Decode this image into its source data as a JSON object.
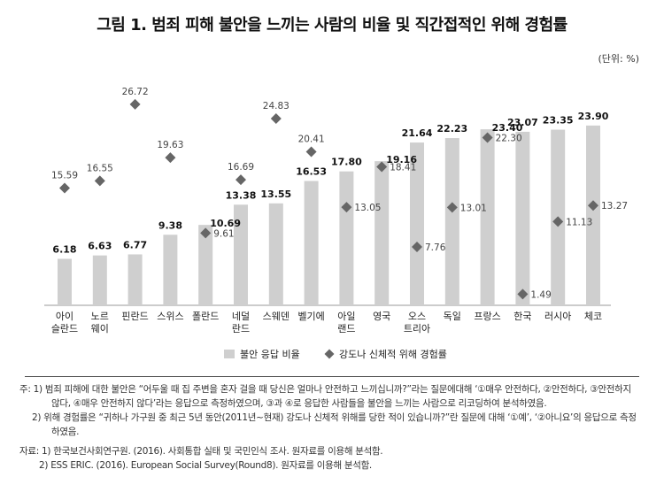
{
  "title": "그림 1. 범죄 피해 불안을 느끼는 사람의 비율 및 직간접적인 위해 경험률",
  "unit": "(단위: %)",
  "chart_data": {
    "type": "bar+scatter",
    "categories": [
      [
        "아이",
        "슬란드"
      ],
      [
        "노르",
        "웨이"
      ],
      [
        "핀란드"
      ],
      [
        "스위스"
      ],
      [
        "폴란드"
      ],
      [
        "네덜",
        "란드"
      ],
      [
        "스웨덴"
      ],
      [
        "벨기에"
      ],
      [
        "아일",
        "랜드"
      ],
      [
        "영국"
      ],
      [
        "오스",
        "트리아"
      ],
      [
        "독일"
      ],
      [
        "프랑스"
      ],
      [
        "한국"
      ],
      [
        "러시아"
      ],
      [
        "체코"
      ]
    ],
    "series": [
      {
        "name": "불안 응답 비율",
        "type": "bar",
        "color": "#cfcfcf",
        "values": [
          6.18,
          6.63,
          6.77,
          9.38,
          10.69,
          13.38,
          13.55,
          16.53,
          17.8,
          19.16,
          21.64,
          22.23,
          23.4,
          23.07,
          23.35,
          23.9
        ],
        "value_labels": [
          "6.18",
          "6.63",
          "6.77",
          "9.38",
          "10.69",
          "13.38",
          "13.55",
          "16.53",
          "17.80",
          "19.16",
          "21.64",
          "22.23",
          "23.40",
          "23.07",
          "23.35",
          "23.90"
        ]
      },
      {
        "name": "강도나 신체적 위해 경험률",
        "type": "scatter",
        "marker": "diamond",
        "color": "#666666",
        "values": [
          15.59,
          16.55,
          26.72,
          19.63,
          9.61,
          16.69,
          24.83,
          20.41,
          13.05,
          18.41,
          7.76,
          13.01,
          22.3,
          1.49,
          11.13,
          13.27
        ],
        "value_labels": [
          "15.59",
          "16.55",
          "26.72",
          "19.63",
          "9.61",
          "16.69",
          "24.83",
          "20.41",
          "13.05",
          "18.41",
          "7.76",
          "13.01",
          "22.30",
          "1.49",
          "11.13",
          "13.27"
        ]
      }
    ],
    "ylim": [
      0,
      30
    ],
    "grid": false,
    "legend_position": "bottom"
  },
  "notes": {
    "note1_line1": "주: 1) 범죄 피해에 대한 불안은 “어두울 때 집 주변을 혼자 걸을 때 당신은 얼마나 안전하고 느끼십니까?”라는 질문에대해 ‘①매우 안전하다, ②안전하다, ③안전하지",
    "note1_line2": "않다, ④매우 안전하지 않다’라는 응답으로 측정하였으며, ③과 ④로 응답한 사람들을 불안을 느끼는 사람으로 리코딩하여 분석하였음.",
    "note2_line1": "2) 위해 경험률은 “귀하나 가구원 중 최근 5년 동안(2011년~현재) 강도나 신체적 위해를 당한 적이 있습니까?”란 질문에 대해 ‘①예’, ‘②아니요’의 응답으로 측정",
    "note2_line2": "하였음.",
    "source_label": "자료: 1) 한국보건사회연구원. (2016). 사회통합 실태 및 국민인식 조사. 원자료를 이용해 분석함.",
    "source2": "2) ESS ERIC. (2016). European Social Survey(Round8). 원자료를 이용해 분석함."
  }
}
